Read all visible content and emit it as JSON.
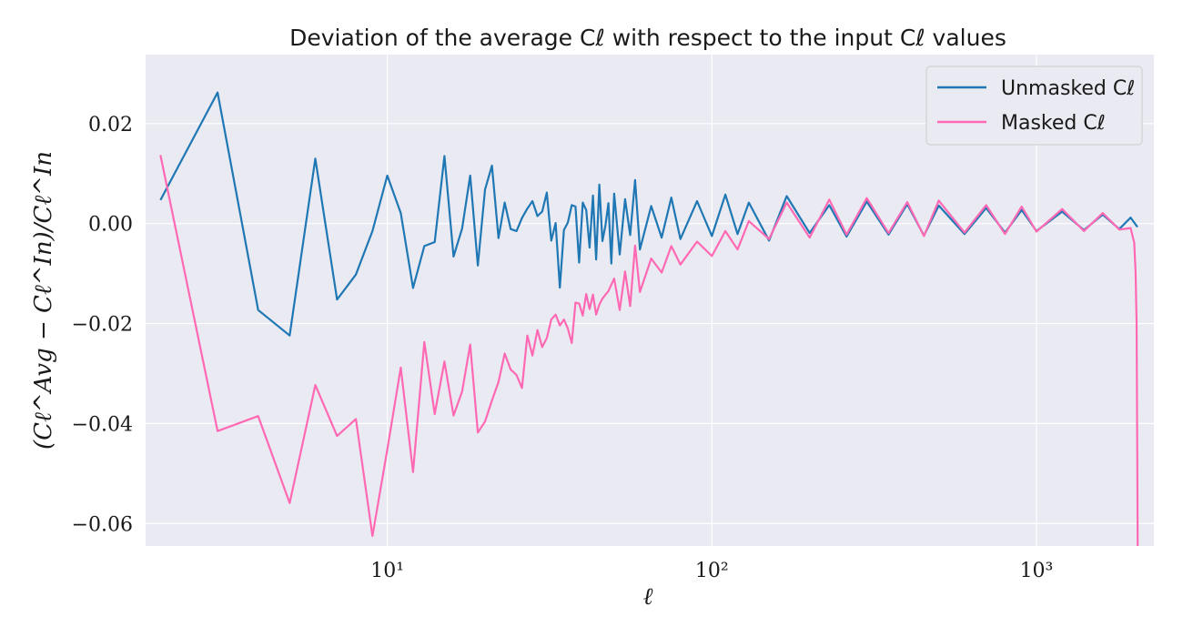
{
  "chart_data": {
    "type": "line",
    "title": "Deviation of the average Cℓ with respect to the input Cℓ values",
    "xlabel": "ℓ",
    "ylabel": "(Cℓ^Avg − Cℓ^In)/Cℓ^In",
    "xscale": "log",
    "xlim": [
      1.8,
      2300
    ],
    "ylim": [
      -0.0645,
      0.0338
    ],
    "x_ticks": [
      {
        "value": 10,
        "label": "10¹"
      },
      {
        "value": 100,
        "label": "10²"
      },
      {
        "value": 1000,
        "label": "10³"
      }
    ],
    "y_ticks": [
      {
        "value": 0.02,
        "label": "0.02"
      },
      {
        "value": 0.0,
        "label": "0.00"
      },
      {
        "value": -0.02,
        "label": "−0.02"
      },
      {
        "value": -0.04,
        "label": "−0.04"
      },
      {
        "value": -0.06,
        "label": "−0.06"
      }
    ],
    "grid": true,
    "legend_position": "top-right",
    "series": [
      {
        "name": "Unmasked Cℓ",
        "color": "#1f77b4",
        "points": [
          [
            2,
            0.0047
          ],
          [
            3,
            0.0262
          ],
          [
            4,
            -0.0173
          ],
          [
            5,
            -0.0224
          ],
          [
            6,
            0.013
          ],
          [
            7,
            -0.0152
          ],
          [
            8,
            -0.0102
          ],
          [
            9,
            -0.0015
          ],
          [
            10,
            0.0096
          ],
          [
            11,
            0.0021
          ],
          [
            12,
            -0.0129
          ],
          [
            13,
            -0.0045
          ],
          [
            14,
            -0.0037
          ],
          [
            15,
            0.0135
          ],
          [
            16,
            -0.0066
          ],
          [
            17,
            -0.001
          ],
          [
            18,
            0.0096
          ],
          [
            19,
            -0.0084
          ],
          [
            20,
            0.0068
          ],
          [
            21,
            0.0116
          ],
          [
            22,
            -0.0029
          ],
          [
            23,
            0.0042
          ],
          [
            24,
            -0.0011
          ],
          [
            25,
            -0.0015
          ],
          [
            26,
            0.0011
          ],
          [
            27,
            0.003
          ],
          [
            28,
            0.0045
          ],
          [
            29,
            0.0015
          ],
          [
            30,
            0.0024
          ],
          [
            31,
            0.0062
          ],
          [
            32,
            -0.0034
          ],
          [
            33,
            0.0001
          ],
          [
            34,
            -0.0128
          ],
          [
            35,
            -0.0013
          ],
          [
            36,
            0.0002
          ],
          [
            37,
            0.0037
          ],
          [
            38,
            0.0034
          ],
          [
            39,
            -0.0078
          ],
          [
            40,
            0.0042
          ],
          [
            41,
            0.0027
          ],
          [
            42,
            -0.0048
          ],
          [
            43,
            0.0056
          ],
          [
            44,
            -0.0072
          ],
          [
            45,
            0.0078
          ],
          [
            46,
            -0.0035
          ],
          [
            47,
            -0.0004
          ],
          [
            48,
            0.0041
          ],
          [
            49,
            -0.008
          ],
          [
            50,
            0.006
          ],
          [
            52,
            -0.0062
          ],
          [
            54,
            0.0049
          ],
          [
            56,
            -0.0023
          ],
          [
            58,
            0.0087
          ],
          [
            60,
            -0.0052
          ],
          [
            65,
            0.0035
          ],
          [
            70,
            -0.0028
          ],
          [
            75,
            0.0052
          ],
          [
            80,
            -0.0031
          ],
          [
            90,
            0.0045
          ],
          [
            100,
            -0.0025
          ],
          [
            110,
            0.0058
          ],
          [
            120,
            -0.0021
          ],
          [
            130,
            0.0042
          ],
          [
            150,
            -0.0034
          ],
          [
            170,
            0.0055
          ],
          [
            200,
            -0.0019
          ],
          [
            230,
            0.0037
          ],
          [
            260,
            -0.0026
          ],
          [
            300,
            0.0044
          ],
          [
            350,
            -0.0022
          ],
          [
            400,
            0.0039
          ],
          [
            450,
            -0.0024
          ],
          [
            500,
            0.0036
          ],
          [
            600,
            -0.0021
          ],
          [
            700,
            0.0031
          ],
          [
            800,
            -0.0018
          ],
          [
            900,
            0.0027
          ],
          [
            1000,
            -0.0015
          ],
          [
            1200,
            0.0024
          ],
          [
            1400,
            -0.0013
          ],
          [
            1600,
            0.0018
          ],
          [
            1800,
            -0.0011
          ],
          [
            1950,
            0.0012
          ],
          [
            2048,
            -0.0007
          ]
        ]
      },
      {
        "name": "Masked Cℓ",
        "color": "#ff69b4",
        "points": [
          [
            2,
            0.0137
          ],
          [
            3,
            -0.0415
          ],
          [
            4,
            -0.0385
          ],
          [
            5,
            -0.0559
          ],
          [
            6,
            -0.0323
          ],
          [
            7,
            -0.0425
          ],
          [
            8,
            -0.0391
          ],
          [
            9,
            -0.0625
          ],
          [
            10,
            -0.0452
          ],
          [
            11,
            -0.0288
          ],
          [
            12,
            -0.0497
          ],
          [
            13,
            -0.0237
          ],
          [
            14,
            -0.0381
          ],
          [
            15,
            -0.0276
          ],
          [
            16,
            -0.0384
          ],
          [
            17,
            -0.0336
          ],
          [
            18,
            -0.0242
          ],
          [
            19,
            -0.0418
          ],
          [
            20,
            -0.0396
          ],
          [
            21,
            -0.0354
          ],
          [
            22,
            -0.0317
          ],
          [
            23,
            -0.026
          ],
          [
            24,
            -0.0292
          ],
          [
            25,
            -0.0303
          ],
          [
            26,
            -0.0329
          ],
          [
            27,
            -0.0224
          ],
          [
            28,
            -0.0264
          ],
          [
            29,
            -0.0213
          ],
          [
            30,
            -0.0247
          ],
          [
            31,
            -0.0229
          ],
          [
            32,
            -0.0192
          ],
          [
            33,
            -0.0182
          ],
          [
            34,
            -0.0204
          ],
          [
            35,
            -0.0192
          ],
          [
            36,
            -0.021
          ],
          [
            37,
            -0.0239
          ],
          [
            38,
            -0.0158
          ],
          [
            39,
            -0.016
          ],
          [
            40,
            -0.0184
          ],
          [
            41,
            -0.0141
          ],
          [
            42,
            -0.0171
          ],
          [
            43,
            -0.0142
          ],
          [
            44,
            -0.0182
          ],
          [
            45,
            -0.0162
          ],
          [
            46,
            -0.015
          ],
          [
            48,
            -0.0135
          ],
          [
            50,
            -0.011
          ],
          [
            52,
            -0.0173
          ],
          [
            54,
            -0.0096
          ],
          [
            56,
            -0.0165
          ],
          [
            58,
            -0.0044
          ],
          [
            60,
            -0.0137
          ],
          [
            65,
            -0.007
          ],
          [
            70,
            -0.0098
          ],
          [
            75,
            -0.0045
          ],
          [
            80,
            -0.0082
          ],
          [
            90,
            -0.0036
          ],
          [
            100,
            -0.0065
          ],
          [
            110,
            -0.0015
          ],
          [
            120,
            -0.0052
          ],
          [
            130,
            0.0005
          ],
          [
            150,
            -0.0031
          ],
          [
            170,
            0.0042
          ],
          [
            200,
            -0.0028
          ],
          [
            230,
            0.0048
          ],
          [
            260,
            -0.0022
          ],
          [
            300,
            0.0051
          ],
          [
            350,
            -0.0019
          ],
          [
            400,
            0.0043
          ],
          [
            450,
            -0.0025
          ],
          [
            500,
            0.0046
          ],
          [
            600,
            -0.0018
          ],
          [
            700,
            0.0037
          ],
          [
            800,
            -0.0021
          ],
          [
            900,
            0.0034
          ],
          [
            1000,
            -0.0016
          ],
          [
            1200,
            0.0029
          ],
          [
            1400,
            -0.0015
          ],
          [
            1600,
            0.0021
          ],
          [
            1800,
            -0.0012
          ],
          [
            1950,
            -0.0009
          ],
          [
            2000,
            -0.0038
          ],
          [
            2020,
            -0.0098
          ],
          [
            2035,
            -0.0196
          ],
          [
            2045,
            -0.0482
          ],
          [
            2050,
            -0.0645
          ]
        ]
      }
    ]
  }
}
